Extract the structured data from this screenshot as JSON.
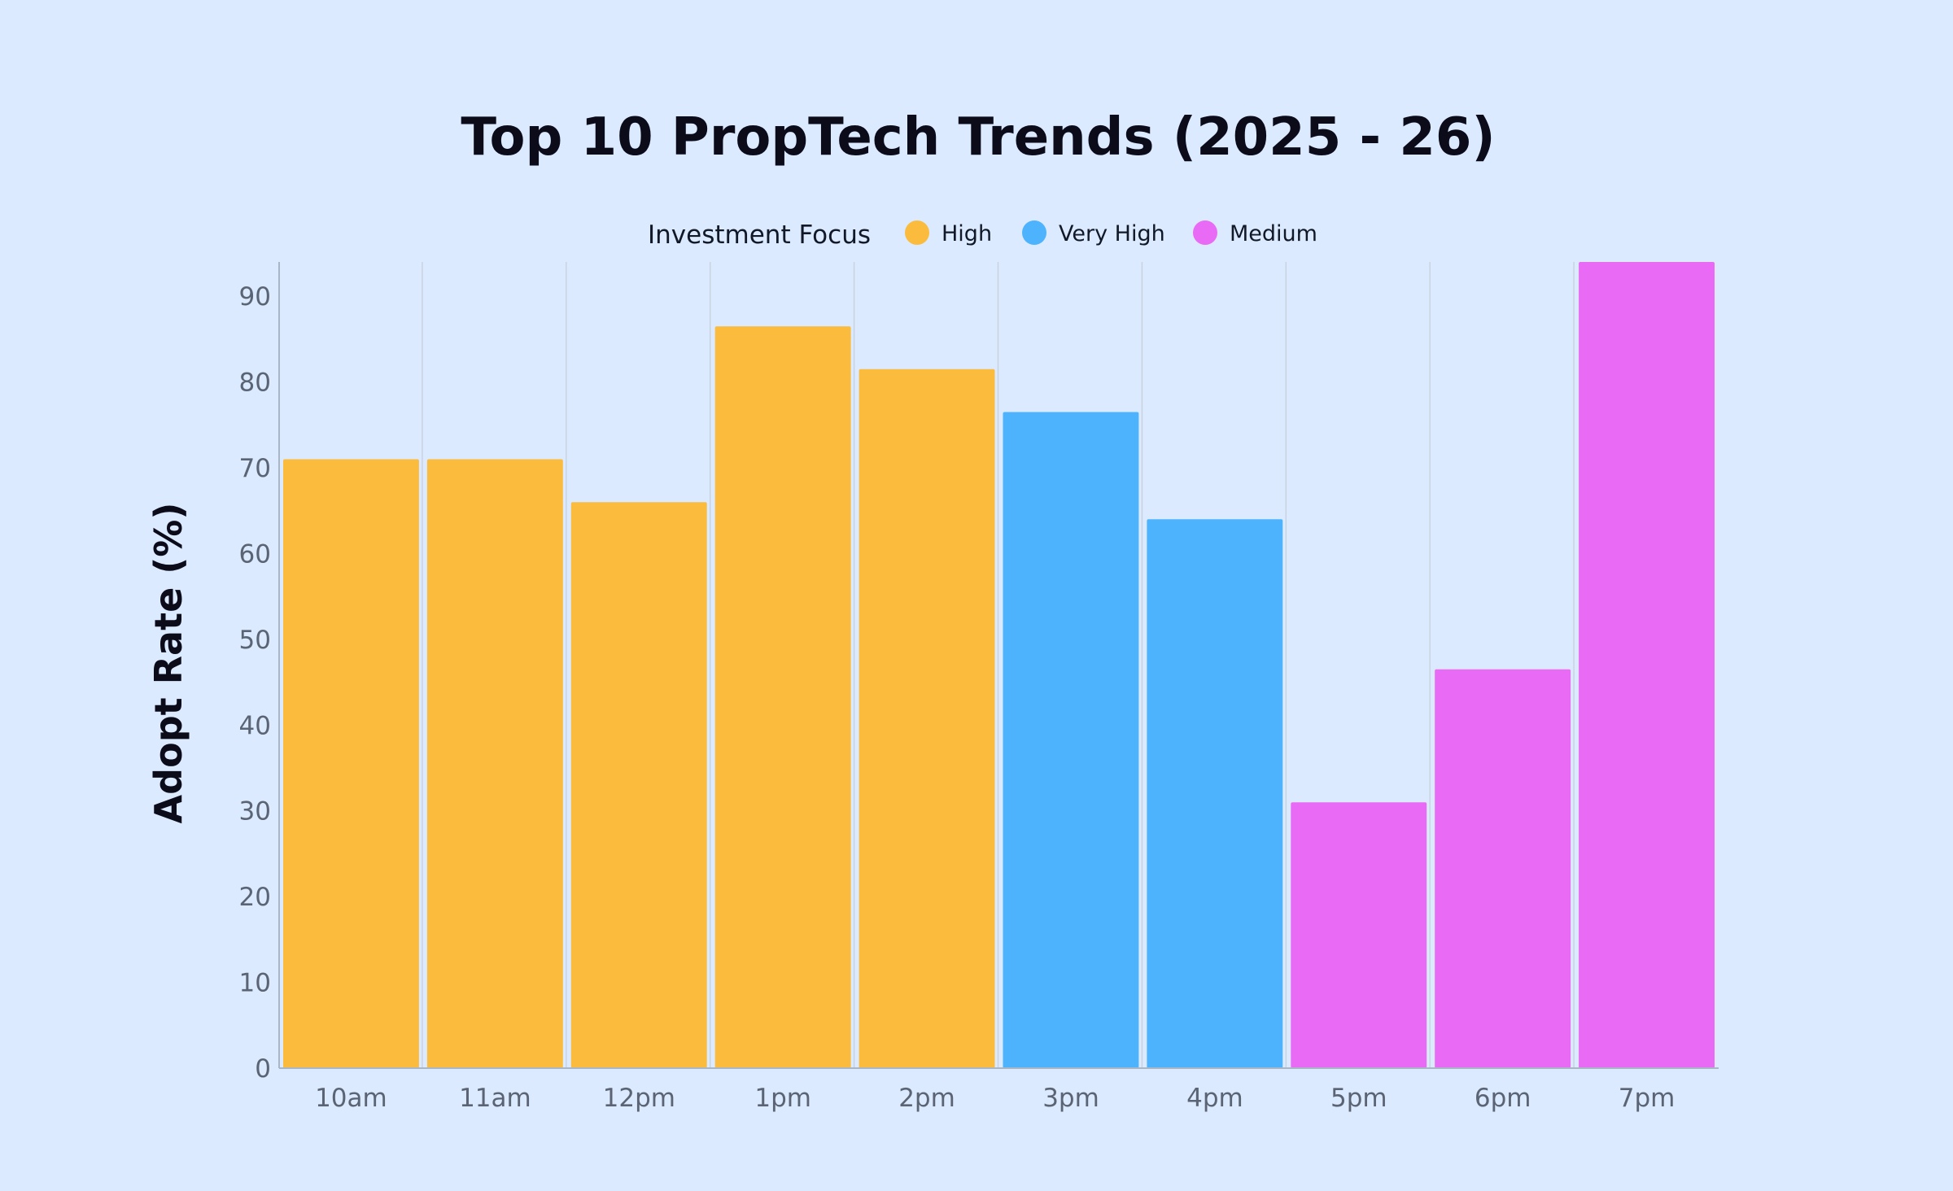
{
  "chart_data": {
    "type": "bar",
    "title": "Top 10 PropTech Trends (2025 - 26)",
    "xlabel": "",
    "ylabel": "Adopt Rate (%)",
    "ylim": [
      0,
      94
    ],
    "yticks": [
      0,
      10,
      20,
      30,
      40,
      50,
      60,
      70,
      80,
      90
    ],
    "grid": "vertical",
    "legend": {
      "title": "Investment Focus",
      "placement": "top-center",
      "entries": [
        {
          "label": "High",
          "color": "#fbbc3e"
        },
        {
          "label": "Very High",
          "color": "#4db3fd"
        },
        {
          "label": "Medium",
          "color": "#e86af5"
        }
      ]
    },
    "categories": [
      "10am",
      "11am",
      "12pm",
      "1pm",
      "2pm",
      "3pm",
      "4pm",
      "5pm",
      "6pm",
      "7pm"
    ],
    "values": [
      71,
      71,
      66,
      86.5,
      81.5,
      76.5,
      64,
      31,
      46.5,
      94
    ],
    "focus": [
      "High",
      "High",
      "High",
      "High",
      "High",
      "Very High",
      "Very High",
      "Medium",
      "Medium",
      "Medium"
    ],
    "colors": {
      "High": "#fbbc3e",
      "Very High": "#4db3fd",
      "Medium": "#e86af5"
    }
  }
}
